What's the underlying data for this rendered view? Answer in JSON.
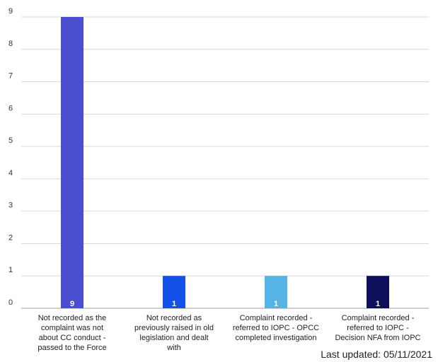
{
  "chart_data": {
    "type": "bar",
    "title": "",
    "xlabel": "",
    "ylabel": "",
    "ylim": [
      0,
      9
    ],
    "yticks": [
      0,
      1,
      2,
      3,
      4,
      5,
      6,
      7,
      8,
      9
    ],
    "grid": true,
    "legend": "none",
    "categories": [
      [
        "Not recorded as the",
        "complaint was not",
        "about CC conduct -",
        "passed to the Force"
      ],
      [
        "Not recorded as",
        "previously raised in old",
        "legislation and dealt",
        "with"
      ],
      [
        "Complaint recorded -",
        "referred to IOPC - OPCC",
        "completed investigation"
      ],
      [
        "Complaint recorded -",
        "referred to IOPC -",
        "Decision NFA from IOPC"
      ]
    ],
    "values": [
      9,
      1,
      1,
      1
    ],
    "data_labels": [
      "9",
      "1",
      "1",
      "1"
    ],
    "colors": [
      "#4a4fd0",
      "#1550e8",
      "#56b3e6",
      "#0d0f5c"
    ]
  },
  "footer": {
    "last_updated": "Last updated: 05/11/2021"
  }
}
